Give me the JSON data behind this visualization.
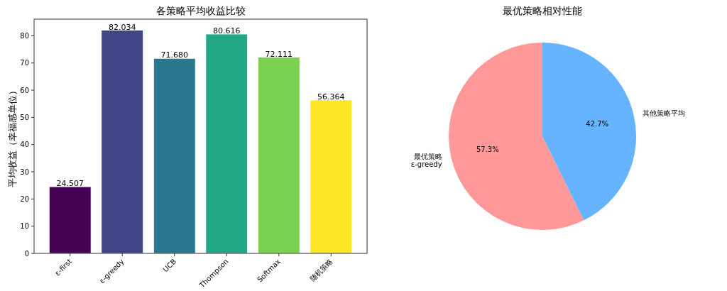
{
  "chart_data": [
    {
      "type": "bar",
      "title": "各策略平均收益比较",
      "ylabel": "平均收益（幸福感单位）",
      "categories": [
        "ε-first",
        "ε-greedy",
        "UCB",
        "Thompson",
        "Softmax",
        "随机策略"
      ],
      "values": [
        24.507,
        82.034,
        71.68,
        80.616,
        72.111,
        56.364
      ],
      "colors": [
        "#440154",
        "#414487",
        "#2a788e",
        "#22a884",
        "#7ad151",
        "#fde725"
      ],
      "ylim": [
        0,
        86.1
      ],
      "yticks": [
        0,
        10,
        20,
        30,
        40,
        50,
        60,
        70,
        80
      ],
      "value_labels": [
        "24.507",
        "82.034",
        "71.680",
        "80.616",
        "72.111",
        "56.364"
      ],
      "grid": false
    },
    {
      "type": "pie",
      "title": "最优策略相对性能",
      "categories": [
        "最优策略\nε-greedy",
        "其他策略平均"
      ],
      "values": [
        57.3,
        42.7
      ],
      "colors": [
        "#ff9999",
        "#66b3ff"
      ],
      "value_labels": [
        "57.3%",
        "42.7%"
      ]
    }
  ]
}
